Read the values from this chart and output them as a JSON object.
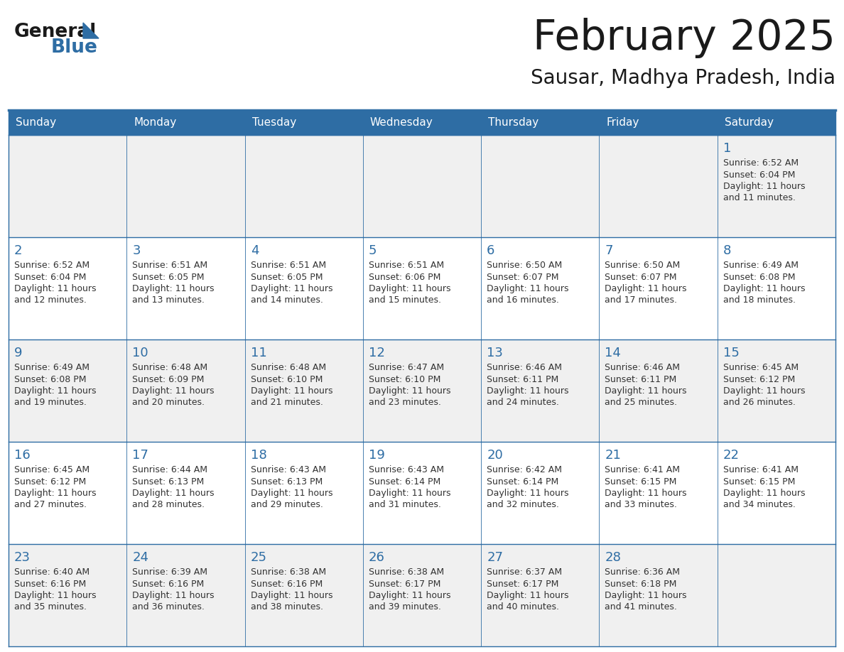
{
  "title": "February 2025",
  "subtitle": "Sausar, Madhya Pradesh, India",
  "header_bg": "#2E6DA4",
  "header_text_color": "#FFFFFF",
  "cell_bg_even": "#F0F0F0",
  "cell_bg_odd": "#FFFFFF",
  "cell_border_color": "#2E6DA4",
  "day_number_color": "#2E6DA4",
  "info_text_color": "#333333",
  "days_of_week": [
    "Sunday",
    "Monday",
    "Tuesday",
    "Wednesday",
    "Thursday",
    "Friday",
    "Saturday"
  ],
  "weeks": [
    [
      null,
      null,
      null,
      null,
      null,
      null,
      1
    ],
    [
      2,
      3,
      4,
      5,
      6,
      7,
      8
    ],
    [
      9,
      10,
      11,
      12,
      13,
      14,
      15
    ],
    [
      16,
      17,
      18,
      19,
      20,
      21,
      22
    ],
    [
      23,
      24,
      25,
      26,
      27,
      28,
      null
    ]
  ],
  "cell_data": {
    "1": {
      "sunrise": "6:52 AM",
      "sunset": "6:04 PM",
      "daylight_hours": "11",
      "daylight_minutes": "11"
    },
    "2": {
      "sunrise": "6:52 AM",
      "sunset": "6:04 PM",
      "daylight_hours": "11",
      "daylight_minutes": "12"
    },
    "3": {
      "sunrise": "6:51 AM",
      "sunset": "6:05 PM",
      "daylight_hours": "11",
      "daylight_minutes": "13"
    },
    "4": {
      "sunrise": "6:51 AM",
      "sunset": "6:05 PM",
      "daylight_hours": "11",
      "daylight_minutes": "14"
    },
    "5": {
      "sunrise": "6:51 AM",
      "sunset": "6:06 PM",
      "daylight_hours": "11",
      "daylight_minutes": "15"
    },
    "6": {
      "sunrise": "6:50 AM",
      "sunset": "6:07 PM",
      "daylight_hours": "11",
      "daylight_minutes": "16"
    },
    "7": {
      "sunrise": "6:50 AM",
      "sunset": "6:07 PM",
      "daylight_hours": "11",
      "daylight_minutes": "17"
    },
    "8": {
      "sunrise": "6:49 AM",
      "sunset": "6:08 PM",
      "daylight_hours": "11",
      "daylight_minutes": "18"
    },
    "9": {
      "sunrise": "6:49 AM",
      "sunset": "6:08 PM",
      "daylight_hours": "11",
      "daylight_minutes": "19"
    },
    "10": {
      "sunrise": "6:48 AM",
      "sunset": "6:09 PM",
      "daylight_hours": "11",
      "daylight_minutes": "20"
    },
    "11": {
      "sunrise": "6:48 AM",
      "sunset": "6:10 PM",
      "daylight_hours": "11",
      "daylight_minutes": "21"
    },
    "12": {
      "sunrise": "6:47 AM",
      "sunset": "6:10 PM",
      "daylight_hours": "11",
      "daylight_minutes": "23"
    },
    "13": {
      "sunrise": "6:46 AM",
      "sunset": "6:11 PM",
      "daylight_hours": "11",
      "daylight_minutes": "24"
    },
    "14": {
      "sunrise": "6:46 AM",
      "sunset": "6:11 PM",
      "daylight_hours": "11",
      "daylight_minutes": "25"
    },
    "15": {
      "sunrise": "6:45 AM",
      "sunset": "6:12 PM",
      "daylight_hours": "11",
      "daylight_minutes": "26"
    },
    "16": {
      "sunrise": "6:45 AM",
      "sunset": "6:12 PM",
      "daylight_hours": "11",
      "daylight_minutes": "27"
    },
    "17": {
      "sunrise": "6:44 AM",
      "sunset": "6:13 PM",
      "daylight_hours": "11",
      "daylight_minutes": "28"
    },
    "18": {
      "sunrise": "6:43 AM",
      "sunset": "6:13 PM",
      "daylight_hours": "11",
      "daylight_minutes": "29"
    },
    "19": {
      "sunrise": "6:43 AM",
      "sunset": "6:14 PM",
      "daylight_hours": "11",
      "daylight_minutes": "31"
    },
    "20": {
      "sunrise": "6:42 AM",
      "sunset": "6:14 PM",
      "daylight_hours": "11",
      "daylight_minutes": "32"
    },
    "21": {
      "sunrise": "6:41 AM",
      "sunset": "6:15 PM",
      "daylight_hours": "11",
      "daylight_minutes": "33"
    },
    "22": {
      "sunrise": "6:41 AM",
      "sunset": "6:15 PM",
      "daylight_hours": "11",
      "daylight_minutes": "34"
    },
    "23": {
      "sunrise": "6:40 AM",
      "sunset": "6:16 PM",
      "daylight_hours": "11",
      "daylight_minutes": "35"
    },
    "24": {
      "sunrise": "6:39 AM",
      "sunset": "6:16 PM",
      "daylight_hours": "11",
      "daylight_minutes": "36"
    },
    "25": {
      "sunrise": "6:38 AM",
      "sunset": "6:16 PM",
      "daylight_hours": "11",
      "daylight_minutes": "38"
    },
    "26": {
      "sunrise": "6:38 AM",
      "sunset": "6:17 PM",
      "daylight_hours": "11",
      "daylight_minutes": "39"
    },
    "27": {
      "sunrise": "6:37 AM",
      "sunset": "6:17 PM",
      "daylight_hours": "11",
      "daylight_minutes": "40"
    },
    "28": {
      "sunrise": "6:36 AM",
      "sunset": "6:18 PM",
      "daylight_hours": "11",
      "daylight_minutes": "41"
    }
  },
  "logo_text_general": "General",
  "logo_text_blue": "Blue",
  "logo_color_general": "#1a1a1a",
  "logo_color_blue": "#2E6DA4",
  "logo_triangle_color": "#2E6DA4"
}
